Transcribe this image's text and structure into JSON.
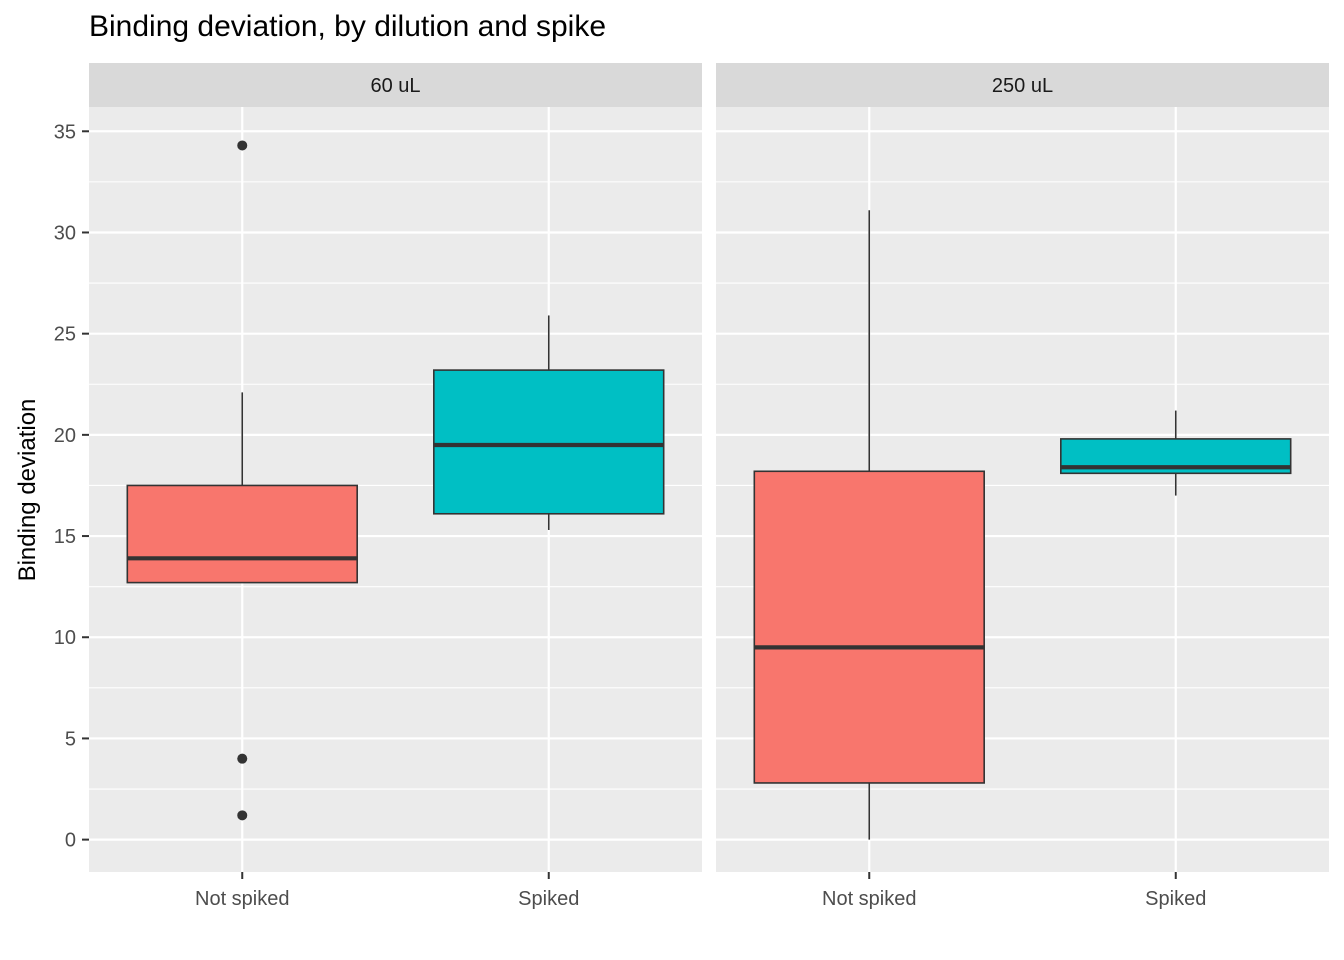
{
  "chart_data": {
    "type": "box",
    "title": "Binding deviation, by dilution and spike",
    "ylabel": "Binding deviation",
    "xlabel": "",
    "ylim": [
      -1.6,
      36.2
    ],
    "yticks": [
      0,
      5,
      10,
      15,
      20,
      25,
      30,
      35
    ],
    "grid": true,
    "categories": [
      "Not spiked",
      "Spiked"
    ],
    "colors": {
      "Not spiked": "#F8766D",
      "Spiked": "#00BFC4",
      "panel_bg": "#EBEBEB",
      "strip_bg": "#D9D9D9",
      "outline": "#333333"
    },
    "facets": [
      {
        "label": "60 uL",
        "boxes": [
          {
            "group": "Not spiked",
            "whisker_low": 12.7,
            "q1": 12.7,
            "median": 13.9,
            "q3": 17.5,
            "whisker_high": 22.1,
            "outliers": [
              34.3,
              4.0,
              1.2
            ]
          },
          {
            "group": "Spiked",
            "whisker_low": 15.3,
            "q1": 16.1,
            "median": 19.5,
            "q3": 23.2,
            "whisker_high": 25.9,
            "outliers": []
          }
        ]
      },
      {
        "label": "250 uL",
        "boxes": [
          {
            "group": "Not spiked",
            "whisker_low": 0.0,
            "q1": 2.8,
            "median": 9.5,
            "q3": 18.2,
            "whisker_high": 31.1,
            "outliers": []
          },
          {
            "group": "Spiked",
            "whisker_low": 17.0,
            "q1": 18.1,
            "median": 18.4,
            "q3": 19.8,
            "whisker_high": 21.2,
            "outliers": []
          }
        ]
      }
    ]
  }
}
